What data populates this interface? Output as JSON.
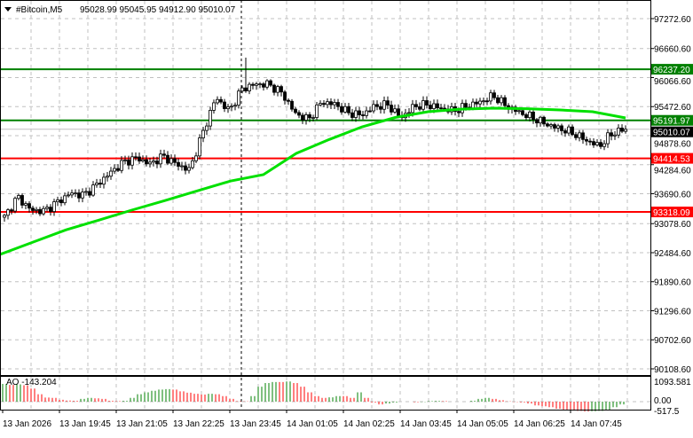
{
  "header": {
    "symbol": "#Bitcoin,M5",
    "ohlc": "95028.99 95045.95 94912.90 95010.07"
  },
  "indicator": {
    "label": "AO -143.204",
    "scale_max": "1093.581",
    "scale_zero": "0.00",
    "scale_min": "-517.5"
  },
  "colors": {
    "up_bar": "#008000",
    "down_bar": "#ff0000",
    "ma": "#00e000",
    "resistance": "#008000",
    "support": "#ff0000",
    "current": "#000000"
  },
  "chart_data": {
    "type": "candlestick",
    "title": "#Bitcoin,M5",
    "ylim": [
      90108.6,
      97272.6
    ],
    "y_ticks": [
      "97272.60",
      "96660.60",
      "96066.60",
      "95472.60",
      "94878.60",
      "94284.60",
      "93690.60",
      "93078.60",
      "92484.60",
      "91890.60",
      "91296.60",
      "90702.60",
      "90108.60"
    ],
    "x_ticks": [
      "13 Jan 2026",
      "13 Jan 19:45",
      "13 Jan 21:05",
      "13 Jan 22:25",
      "13 Jan 23:45",
      "14 Jan 01:05",
      "14 Jan 02:25",
      "14 Jan 03:45",
      "14 Jan 05:05",
      "14 Jan 06:25",
      "14 Jan 07:45"
    ],
    "levels": [
      {
        "label": "96237.20",
        "value": 96237.2,
        "color": "#008000"
      },
      {
        "label": "95191.97",
        "value": 95191.97,
        "color": "#008000"
      },
      {
        "label": "94414.53",
        "value": 94414.53,
        "color": "#ff0000"
      },
      {
        "label": "93318.09",
        "value": 93318.09,
        "color": "#ff0000"
      }
    ],
    "current_price": {
      "label": "95010.07",
      "value": 95010.07
    },
    "price_path": [
      93210,
      93627,
      93355,
      93337,
      93518,
      93700,
      93663,
      93880,
      94117,
      94335,
      94425,
      94298,
      94462,
      94298,
      94172,
      94933,
      95658,
      95386,
      95840,
      95930,
      95930,
      95750,
      95332,
      95205,
      95568,
      95520,
      95350,
      95296,
      95477,
      95510,
      95242,
      95480,
      95513,
      95440,
      95386,
      95480,
      95568,
      95695,
      95480,
      95350,
      95242,
      95114,
      95023,
      94933,
      94788,
      94661,
      94930,
      95010.07
    ],
    "spike_high": 96475,
    "ma_path": [
      92448,
      92700,
      92950,
      93150,
      93355,
      93550,
      93750,
      93950,
      94080,
      94516,
      94800,
      95060,
      95250,
      95368,
      95420,
      95441,
      95430,
      95405,
      95368,
      95241
    ],
    "ao_values": [
      950,
      900,
      930,
      880,
      700,
      400,
      220,
      200,
      100,
      60,
      50,
      150,
      200,
      180,
      150,
      50,
      30,
      50,
      200,
      400,
      500,
      580,
      650,
      670,
      650,
      550,
      480,
      420,
      380,
      420,
      400,
      300,
      150,
      30,
      20,
      300,
      800,
      1000,
      1050,
      1050,
      1080,
      1000,
      800,
      500,
      300,
      200,
      230,
      300,
      300,
      200,
      500,
      200,
      -50,
      -150,
      -100,
      -50,
      0,
      0,
      -30,
      -20,
      30,
      40,
      30,
      0,
      0,
      0,
      50,
      150,
      200,
      150,
      80,
      20,
      -20,
      -40,
      -100,
      -200,
      -250,
      -300,
      -380,
      -420,
      -480,
      -500,
      -530,
      -520,
      -500,
      -430,
      -300,
      -150
    ],
    "ao_range": [
      -517.5,
      1093.581
    ]
  }
}
